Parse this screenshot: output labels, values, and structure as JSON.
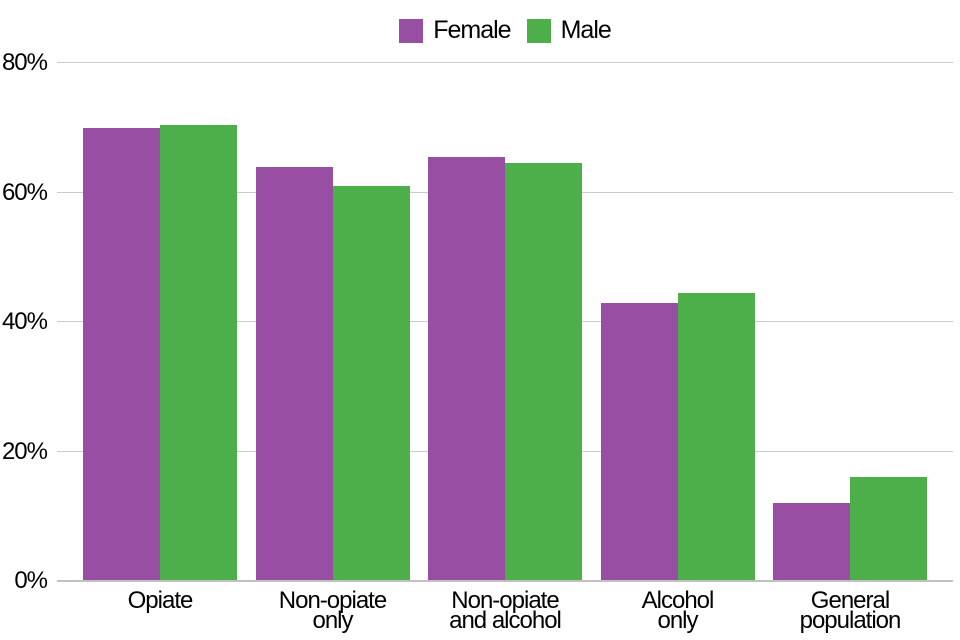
{
  "chart_data": {
    "type": "bar",
    "grouped": true,
    "categories": [
      "Opiate",
      "Non-opiate\nonly",
      "Non-opiate\nand alcohol",
      "Alcohol\nonly",
      "General\npopulation"
    ],
    "series": [
      {
        "name": "Female",
        "color": "#984EA3",
        "values": [
          70,
          64,
          65.5,
          43,
          12
        ]
      },
      {
        "name": "Male",
        "color": "#4DAF4A",
        "values": [
          70.5,
          61,
          64.5,
          44.5,
          16
        ]
      }
    ],
    "ylabel": "",
    "xlabel": "",
    "ylim": [
      0,
      80
    ],
    "yticks": [
      0,
      20,
      40,
      60,
      80
    ],
    "ytick_labels": [
      "0%",
      "20%",
      "40%",
      "60%",
      "80%"
    ],
    "grid": true,
    "legend_position": "top-center"
  },
  "colors": {
    "female": "#984EA3",
    "male": "#4DAF4A",
    "gridline": "#cccccc",
    "axis_line": "#c1c1c1",
    "text": "#000000",
    "background": "#ffffff"
  }
}
